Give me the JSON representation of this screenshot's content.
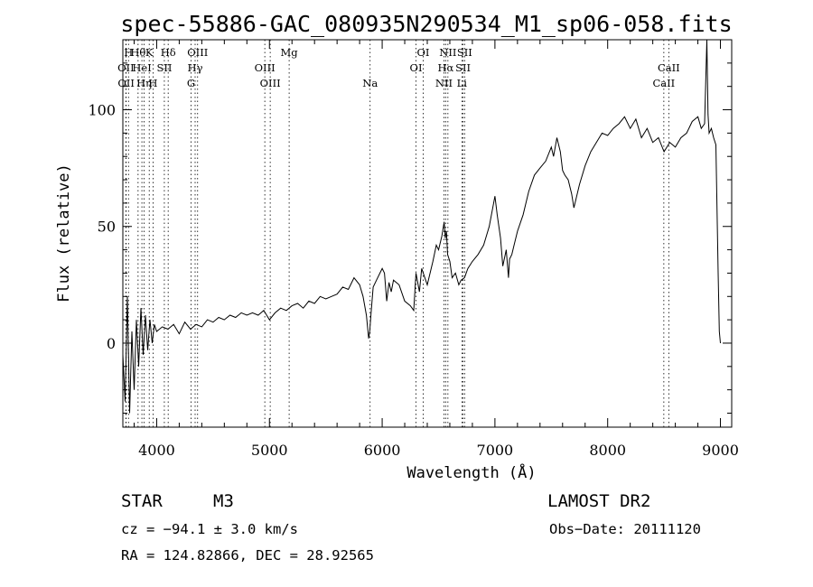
{
  "chart_data": {
    "type": "line",
    "title": "spec-55886-GAC_080935N290534_M1_sp06-058.fits",
    "xlabel": "Wavelength (Å)",
    "ylabel": "Flux (relative)",
    "xlim": [
      3700,
      9100
    ],
    "ylim": [
      -36,
      130
    ],
    "x_ticks": [
      4000,
      5000,
      6000,
      7000,
      8000,
      9000
    ],
    "y_ticks": [
      0,
      50,
      100
    ],
    "grid": false,
    "series": [
      {
        "x": [
          3700,
          3720,
          3740,
          3760,
          3780,
          3800,
          3820,
          3840,
          3860,
          3880,
          3900,
          3920,
          3940,
          3960,
          3980,
          4000,
          4050,
          4100,
          4150,
          4200,
          4250,
          4300,
          4350,
          4400,
          4450,
          4500,
          4550,
          4600,
          4650,
          4700,
          4750,
          4800,
          4850,
          4900,
          4950,
          5000,
          5050,
          5100,
          5150,
          5200,
          5250,
          5300,
          5350,
          5400,
          5450,
          5500,
          5550,
          5600,
          5650,
          5700,
          5750,
          5800,
          5830,
          5860,
          5880,
          5890,
          5900,
          5920,
          5950,
          5980,
          6000,
          6020,
          6040,
          6060,
          6080,
          6100,
          6150,
          6200,
          6250,
          6280,
          6300,
          6330,
          6350,
          6400,
          6450,
          6480,
          6500,
          6530,
          6550,
          6560,
          6570,
          6580,
          6600,
          6620,
          6650,
          6680,
          6700,
          6730,
          6760,
          6800,
          6850,
          6900,
          6950,
          7000,
          7020,
          7050,
          7070,
          7100,
          7120,
          7130,
          7150,
          7170,
          7200,
          7250,
          7300,
          7350,
          7400,
          7450,
          7500,
          7520,
          7550,
          7580,
          7600,
          7620,
          7650,
          7680,
          7700,
          7720,
          7750,
          7800,
          7850,
          7900,
          7950,
          8000,
          8050,
          8100,
          8150,
          8200,
          8250,
          8300,
          8350,
          8400,
          8450,
          8500,
          8550,
          8600,
          8650,
          8700,
          8750,
          8800,
          8830,
          8860,
          8880,
          8890,
          8900,
          8920,
          8940,
          8960,
          8980,
          8990,
          9000
        ],
        "y": [
          -5,
          -25,
          20,
          -30,
          5,
          -20,
          10,
          -10,
          15,
          -5,
          12,
          -3,
          10,
          0,
          8,
          5,
          7,
          6,
          8,
          4,
          9,
          6,
          8,
          7,
          10,
          9,
          11,
          10,
          12,
          11,
          13,
          12,
          13,
          12,
          14,
          10,
          13,
          15,
          14,
          16,
          17,
          15,
          18,
          17,
          20,
          19,
          20,
          21,
          24,
          23,
          28,
          25,
          20,
          12,
          2,
          5,
          12,
          24,
          27,
          30,
          32,
          30,
          18,
          26,
          22,
          27,
          25,
          18,
          16,
          14,
          30,
          22,
          32,
          25,
          35,
          42,
          40,
          46,
          52,
          45,
          48,
          38,
          35,
          28,
          30,
          25,
          27,
          28,
          32,
          35,
          38,
          42,
          50,
          63,
          55,
          45,
          33,
          40,
          28,
          36,
          38,
          42,
          48,
          55,
          65,
          72,
          75,
          78,
          84,
          80,
          88,
          82,
          74,
          72,
          70,
          64,
          58,
          62,
          68,
          76,
          82,
          86,
          90,
          89,
          92,
          94,
          97,
          92,
          96,
          88,
          92,
          86,
          88,
          82,
          86,
          84,
          88,
          90,
          95,
          97,
          92,
          94,
          130,
          98,
          90,
          92,
          88,
          85,
          30,
          5,
          0
        ]
      }
    ],
    "line_markers": [
      {
        "x": 3727,
        "label": "OII",
        "row": 1
      },
      {
        "x": 3729,
        "label": "OII",
        "row": 2
      },
      {
        "x": 3750,
        "label": "H",
        "row": 0
      },
      {
        "x": 3835,
        "label": "Hθ",
        "row": 0
      },
      {
        "x": 3869,
        "label": "HeI",
        "row": 1
      },
      {
        "x": 3889,
        "label": "Hη",
        "row": 2
      },
      {
        "x": 3934,
        "label": "K",
        "row": 0
      },
      {
        "x": 3968,
        "label": "H",
        "row": 2
      },
      {
        "x": 4068,
        "label": "SII",
        "row": 1
      },
      {
        "x": 4102,
        "label": "Hδ",
        "row": 0
      },
      {
        "x": 4305,
        "label": "G",
        "row": 2
      },
      {
        "x": 4341,
        "label": "Hγ",
        "row": 1
      },
      {
        "x": 4363,
        "label": "OIII",
        "row": 0
      },
      {
        "x": 4959,
        "label": "OIII",
        "row": 1
      },
      {
        "x": 5007,
        "label": "OIII",
        "row": 2
      },
      {
        "x": 5175,
        "label": "Mg",
        "row": 0
      },
      {
        "x": 5893,
        "label": "Na",
        "row": 2
      },
      {
        "x": 6300,
        "label": "OI",
        "row": 1
      },
      {
        "x": 6364,
        "label": "OI",
        "row": 0
      },
      {
        "x": 6548,
        "label": "NII",
        "row": 2
      },
      {
        "x": 6563,
        "label": "Hα",
        "row": 1
      },
      {
        "x": 6583,
        "label": "NII",
        "row": 0
      },
      {
        "x": 6707,
        "label": "Li",
        "row": 2
      },
      {
        "x": 6717,
        "label": "SII",
        "row": 1
      },
      {
        "x": 6731,
        "label": "SII",
        "row": 0
      },
      {
        "x": 8498,
        "label": "CaII",
        "row": 2
      },
      {
        "x": 8542,
        "label": "CaII",
        "row": 1
      }
    ]
  },
  "footer": {
    "class_label": "STAR",
    "subclass": "M3",
    "survey": "LAMOST DR2",
    "cz": "cz = −94.1 ± 3.0 km/s",
    "obs_date": "Obs−Date: 20111120",
    "coords": "RA = 124.82866, DEC =  28.92565"
  }
}
